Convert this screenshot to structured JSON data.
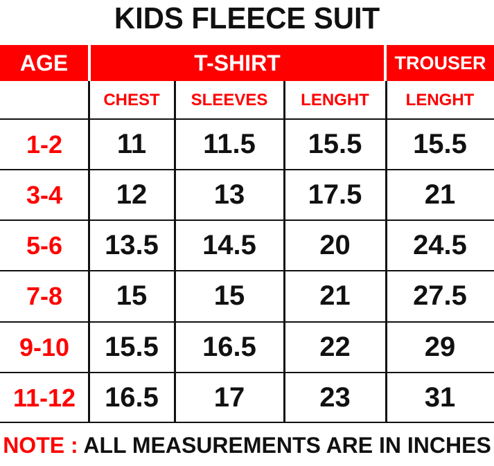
{
  "title": "KIDS FLEECE SUIT",
  "headers": {
    "age": "AGE",
    "tshirt": "T-SHIRT",
    "trouser": "TROUSER"
  },
  "subheaders": [
    "CHEST",
    "SLEEVES",
    "LENGHT",
    "LENGHT"
  ],
  "rows": [
    {
      "age": "1-2",
      "values": [
        "11",
        "11.5",
        "15.5",
        "15.5"
      ]
    },
    {
      "age": "3-4",
      "values": [
        "12",
        "13",
        "17.5",
        "21"
      ]
    },
    {
      "age": "5-6",
      "values": [
        "13.5",
        "14.5",
        "20",
        "24.5"
      ]
    },
    {
      "age": "7-8",
      "values": [
        "15",
        "15",
        "21",
        "27.5"
      ]
    },
    {
      "age": "9-10",
      "values": [
        "15.5",
        "16.5",
        "22",
        "29"
      ]
    },
    {
      "age": "11-12",
      "values": [
        "16.5",
        "17",
        "23",
        "31"
      ]
    }
  ],
  "note": {
    "label": "NOTE :",
    "text": "ALL MEASUREMENTS ARE IN INCHES"
  },
  "colors": {
    "accent": "#ff0000",
    "text": "#111111"
  }
}
